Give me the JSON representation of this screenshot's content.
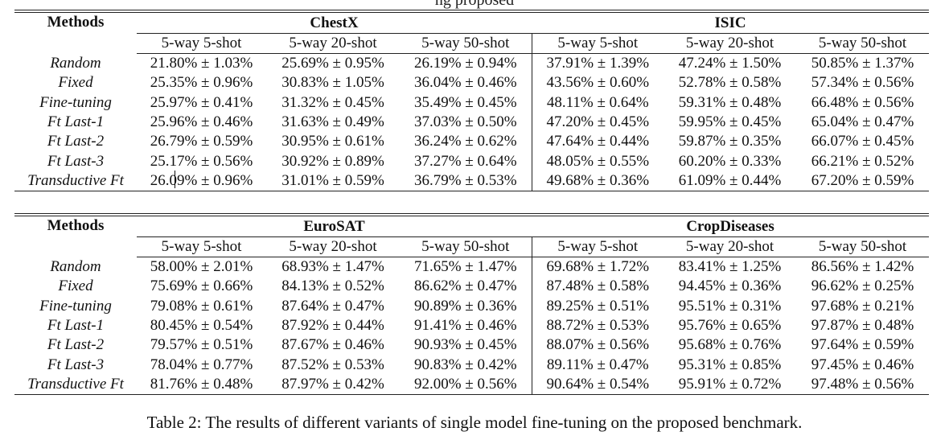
{
  "top_partial_text": "ng         proposed",
  "tables": [
    {
      "methods_header": "Methods",
      "groups": [
        {
          "name": "ChestX",
          "subheaders": [
            "5-way 5-shot",
            "5-way 20-shot",
            "5-way 50-shot"
          ]
        },
        {
          "name": "ISIC",
          "subheaders": [
            "5-way 5-shot",
            "5-way 20-shot",
            "5-way 50-shot"
          ]
        }
      ],
      "rows": [
        {
          "method": "Random",
          "values": [
            "21.80% ± 1.03%",
            "25.69% ± 0.95%",
            "26.19% ± 0.94%",
            "37.91% ± 1.39%",
            "47.24% ± 1.50%",
            "50.85% ± 1.37%"
          ]
        },
        {
          "method": "Fixed",
          "values": [
            "25.35% ± 0.96%",
            "30.83% ± 1.05%",
            "36.04% ± 0.46%",
            "43.56% ± 0.60%",
            "52.78% ± 0.58%",
            "57.34% ± 0.56%"
          ]
        },
        {
          "method": "Fine-tuning",
          "values": [
            "25.97% ± 0.41%",
            "31.32% ± 0.45%",
            "35.49% ± 0.45%",
            "48.11% ± 0.64%",
            "59.31% ± 0.48%",
            "66.48% ± 0.56%"
          ]
        },
        {
          "method": "Ft Last-1",
          "values": [
            "25.96% ± 0.46%",
            "31.63% ± 0.49%",
            "37.03% ± 0.50%",
            "47.20% ± 0.45%",
            "59.95% ± 0.45%",
            "65.04% ± 0.47%"
          ]
        },
        {
          "method": "Ft Last-2",
          "values": [
            "26.79% ± 0.59%",
            "30.95% ± 0.61%",
            "36.24% ± 0.62%",
            "47.64% ± 0.44%",
            "59.87% ± 0.35%",
            "66.07% ± 0.45%"
          ]
        },
        {
          "method": "Ft Last-3",
          "values": [
            "25.17% ± 0.56%",
            "30.92% ± 0.89%",
            "37.27% ± 0.64%",
            "48.05% ± 0.55%",
            "60.20% ± 0.33%",
            "66.21% ± 0.52%"
          ]
        },
        {
          "method": "Transductive Ft",
          "values": [
            "26.09% ± 0.96%",
            "31.01% ± 0.59%",
            "36.79% ± 0.53%",
            "49.68% ± 0.36%",
            "61.09% ± 0.44%",
            "67.20% ± 0.59%"
          ]
        }
      ]
    },
    {
      "methods_header": "Methods",
      "groups": [
        {
          "name": "EuroSAT",
          "subheaders": [
            "5-way 5-shot",
            "5-way 20-shot",
            "5-way 50-shot"
          ]
        },
        {
          "name": "CropDiseases",
          "subheaders": [
            "5-way 5-shot",
            "5-way 20-shot",
            "5-way 50-shot"
          ]
        }
      ],
      "rows": [
        {
          "method": "Random",
          "values": [
            "58.00% ± 2.01%",
            "68.93% ± 1.47%",
            "71.65% ± 1.47%",
            "69.68% ± 1.72%",
            "83.41% ± 1.25%",
            "86.56% ± 1.42%"
          ]
        },
        {
          "method": "Fixed",
          "values": [
            "75.69% ± 0.66%",
            "84.13% ± 0.52%",
            "86.62% ± 0.47%",
            "87.48% ± 0.58%",
            "94.45% ± 0.36%",
            "96.62% ± 0.25%"
          ]
        },
        {
          "method": "Fine-tuning",
          "values": [
            "79.08% ± 0.61%",
            "87.64% ± 0.47%",
            "90.89% ± 0.36%",
            "89.25% ± 0.51%",
            "95.51% ± 0.31%",
            "97.68% ± 0.21%"
          ]
        },
        {
          "method": "Ft Last-1",
          "values": [
            "80.45% ± 0.54%",
            "87.92% ± 0.44%",
            "91.41% ± 0.46%",
            "88.72% ± 0.53%",
            "95.76% ± 0.65%",
            "97.87% ± 0.48%"
          ]
        },
        {
          "method": "Ft Last-2",
          "values": [
            "79.57% ± 0.51%",
            "87.67% ± 0.46%",
            "90.93% ± 0.45%",
            "88.07% ± 0.56%",
            "95.68% ± 0.76%",
            "97.64% ± 0.59%"
          ]
        },
        {
          "method": "Ft Last-3",
          "values": [
            "78.04% ± 0.77%",
            "87.52% ± 0.53%",
            "90.83% ± 0.42%",
            "89.11% ± 0.47%",
            "95.31% ± 0.85%",
            "97.45% ± 0.46%"
          ]
        },
        {
          "method": "Transductive Ft",
          "values": [
            "81.76% ± 0.48%",
            "87.97% ± 0.42%",
            "92.00% ± 0.56%",
            "90.64% ± 0.54%",
            "95.91% ± 0.72%",
            "97.48% ± 0.56%"
          ]
        }
      ]
    }
  ],
  "caption": "Table 2: The results of different variants of single model fine-tuning on the proposed benchmark."
}
